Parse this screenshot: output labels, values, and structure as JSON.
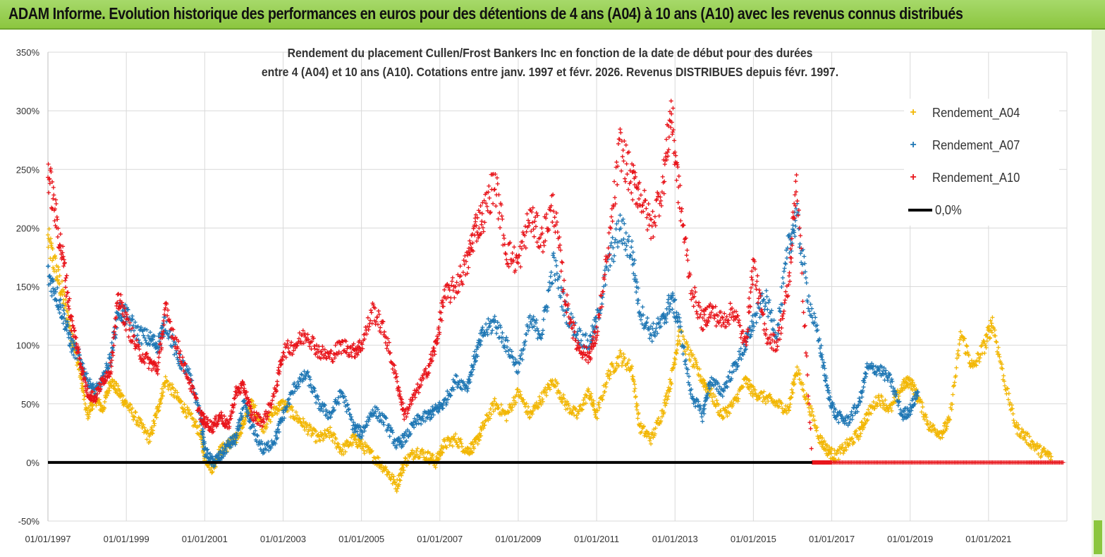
{
  "banner": {
    "title": "ADAM Informe. Evolution historique des performances en euros pour des détentions de 4 ans (A04) à 10 ans (A10) avec les revenus connus distribués"
  },
  "chart_data": {
    "type": "scatter",
    "title_line1": "Rendement du placement Cullen/Frost Bankers Inc en fonction de la date de début pour des durées",
    "title_line2": "entre 4 (A04) et 10 ans (A10).  Cotations entre janv. 1997 et févr. 2026. Revenus DISTRIBUES depuis févr. 1997.",
    "xlabel": "",
    "ylabel": "",
    "x_range": [
      1997.0,
      2023.0
    ],
    "ylim": [
      -50,
      350
    ],
    "y_ticks": [
      "-50%",
      "0%",
      "50%",
      "100%",
      "150%",
      "200%",
      "250%",
      "300%",
      "350%"
    ],
    "x_tick_labels": [
      "01/01/1997",
      "01/01/1999",
      "01/01/2001",
      "01/01/2003",
      "01/01/2005",
      "01/01/2007",
      "01/01/2009",
      "01/01/2011",
      "01/01/2013",
      "01/01/2015",
      "01/01/2017",
      "01/01/2019",
      "01/01/2021"
    ],
    "legend_position": "top-right",
    "series": [
      {
        "name": "Rendement_A04",
        "color": "#f2b705",
        "marker": "plus",
        "points": [
          [
            1997.0,
            190
          ],
          [
            1997.2,
            165
          ],
          [
            1997.4,
            140
          ],
          [
            1997.6,
            110
          ],
          [
            1997.8,
            80
          ],
          [
            1998.0,
            40
          ],
          [
            1998.2,
            55
          ],
          [
            1998.4,
            45
          ],
          [
            1998.6,
            70
          ],
          [
            1998.8,
            60
          ],
          [
            1999.0,
            50
          ],
          [
            1999.3,
            35
          ],
          [
            1999.6,
            20
          ],
          [
            1999.8,
            45
          ],
          [
            2000.0,
            70
          ],
          [
            2000.3,
            55
          ],
          [
            2000.6,
            40
          ],
          [
            2000.9,
            25
          ],
          [
            2001.0,
            5
          ],
          [
            2001.2,
            -5
          ],
          [
            2001.4,
            10
          ],
          [
            2001.6,
            15
          ],
          [
            2001.8,
            20
          ],
          [
            2002.0,
            35
          ],
          [
            2002.2,
            50
          ],
          [
            2002.5,
            30
          ],
          [
            2002.8,
            45
          ],
          [
            2003.0,
            50
          ],
          [
            2003.3,
            40
          ],
          [
            2003.6,
            30
          ],
          [
            2003.9,
            20
          ],
          [
            2004.2,
            25
          ],
          [
            2004.5,
            10
          ],
          [
            2004.8,
            20
          ],
          [
            2005.0,
            15
          ],
          [
            2005.3,
            5
          ],
          [
            2005.6,
            -5
          ],
          [
            2005.9,
            -20
          ],
          [
            2006.1,
            0
          ],
          [
            2006.4,
            10
          ],
          [
            2006.7,
            5
          ],
          [
            2006.9,
            0
          ],
          [
            2007.1,
            15
          ],
          [
            2007.4,
            20
          ],
          [
            2007.7,
            10
          ],
          [
            2007.9,
            15
          ],
          [
            2008.1,
            30
          ],
          [
            2008.4,
            50
          ],
          [
            2008.7,
            40
          ],
          [
            2009.0,
            60
          ],
          [
            2009.3,
            40
          ],
          [
            2009.6,
            55
          ],
          [
            2009.9,
            70
          ],
          [
            2010.2,
            50
          ],
          [
            2010.5,
            40
          ],
          [
            2010.8,
            60
          ],
          [
            2011.0,
            40
          ],
          [
            2011.3,
            75
          ],
          [
            2011.6,
            90
          ],
          [
            2011.9,
            80
          ],
          [
            2012.1,
            30
          ],
          [
            2012.4,
            20
          ],
          [
            2012.7,
            45
          ],
          [
            2012.9,
            70
          ],
          [
            2013.1,
            110
          ],
          [
            2013.4,
            90
          ],
          [
            2013.7,
            70
          ],
          [
            2013.9,
            60
          ],
          [
            2014.2,
            40
          ],
          [
            2014.5,
            50
          ],
          [
            2014.8,
            70
          ],
          [
            2015.0,
            60
          ],
          [
            2015.3,
            55
          ],
          [
            2015.6,
            50
          ],
          [
            2015.9,
            45
          ],
          [
            2016.1,
            80
          ],
          [
            2016.4,
            50
          ],
          [
            2016.7,
            20
          ],
          [
            2016.9,
            10
          ],
          [
            2017.1,
            5
          ],
          [
            2017.4,
            15
          ],
          [
            2017.7,
            25
          ],
          [
            2017.9,
            40
          ],
          [
            2018.2,
            55
          ],
          [
            2018.5,
            45
          ],
          [
            2018.8,
            65
          ],
          [
            2019.0,
            70
          ],
          [
            2019.2,
            55
          ],
          [
            2019.5,
            30
          ],
          [
            2019.8,
            25
          ],
          [
            2020.0,
            35
          ],
          [
            2020.3,
            110
          ],
          [
            2020.6,
            80
          ],
          [
            2020.9,
            100
          ],
          [
            2021.1,
            120
          ],
          [
            2021.4,
            70
          ],
          [
            2021.7,
            30
          ],
          [
            2022.0,
            20
          ],
          [
            2022.3,
            10
          ],
          [
            2022.6,
            5
          ]
        ]
      },
      {
        "name": "Rendement_A07",
        "color": "#1f77b4",
        "marker": "plus",
        "points": [
          [
            1997.0,
            160
          ],
          [
            1997.2,
            145
          ],
          [
            1997.4,
            125
          ],
          [
            1997.6,
            100
          ],
          [
            1997.8,
            90
          ],
          [
            1998.0,
            70
          ],
          [
            1998.2,
            60
          ],
          [
            1998.4,
            70
          ],
          [
            1998.6,
            90
          ],
          [
            1998.8,
            130
          ],
          [
            1999.0,
            125
          ],
          [
            1999.3,
            110
          ],
          [
            1999.6,
            105
          ],
          [
            1999.8,
            100
          ],
          [
            2000.0,
            120
          ],
          [
            2000.3,
            90
          ],
          [
            2000.6,
            75
          ],
          [
            2000.9,
            40
          ],
          [
            2001.0,
            10
          ],
          [
            2001.2,
            0
          ],
          [
            2001.4,
            5
          ],
          [
            2001.6,
            15
          ],
          [
            2001.8,
            20
          ],
          [
            2002.0,
            50
          ],
          [
            2002.2,
            30
          ],
          [
            2002.5,
            10
          ],
          [
            2002.8,
            20
          ],
          [
            2003.0,
            40
          ],
          [
            2003.3,
            65
          ],
          [
            2003.6,
            75
          ],
          [
            2003.9,
            50
          ],
          [
            2004.2,
            40
          ],
          [
            2004.5,
            60
          ],
          [
            2004.8,
            30
          ],
          [
            2005.0,
            25
          ],
          [
            2005.3,
            45
          ],
          [
            2005.6,
            35
          ],
          [
            2005.9,
            15
          ],
          [
            2006.1,
            20
          ],
          [
            2006.4,
            35
          ],
          [
            2006.7,
            40
          ],
          [
            2006.9,
            45
          ],
          [
            2007.1,
            50
          ],
          [
            2007.4,
            70
          ],
          [
            2007.7,
            65
          ],
          [
            2007.9,
            90
          ],
          [
            2008.1,
            110
          ],
          [
            2008.4,
            120
          ],
          [
            2008.7,
            100
          ],
          [
            2009.0,
            80
          ],
          [
            2009.3,
            120
          ],
          [
            2009.6,
            110
          ],
          [
            2009.9,
            170
          ],
          [
            2010.2,
            130
          ],
          [
            2010.5,
            110
          ],
          [
            2010.8,
            100
          ],
          [
            2011.0,
            120
          ],
          [
            2011.3,
            170
          ],
          [
            2011.6,
            200
          ],
          [
            2011.9,
            180
          ],
          [
            2012.1,
            130
          ],
          [
            2012.4,
            110
          ],
          [
            2012.7,
            120
          ],
          [
            2012.9,
            140
          ],
          [
            2013.1,
            120
          ],
          [
            2013.4,
            60
          ],
          [
            2013.7,
            40
          ],
          [
            2013.9,
            70
          ],
          [
            2014.2,
            60
          ],
          [
            2014.5,
            80
          ],
          [
            2014.8,
            100
          ],
          [
            2015.0,
            120
          ],
          [
            2015.3,
            140
          ],
          [
            2015.6,
            110
          ],
          [
            2015.9,
            185
          ],
          [
            2016.1,
            210
          ],
          [
            2016.4,
            140
          ],
          [
            2016.7,
            100
          ],
          [
            2016.9,
            60
          ],
          [
            2017.1,
            40
          ],
          [
            2017.4,
            35
          ],
          [
            2017.7,
            50
          ],
          [
            2017.9,
            80
          ],
          [
            2018.2,
            80
          ],
          [
            2018.5,
            70
          ],
          [
            2018.8,
            40
          ],
          [
            2019.0,
            45
          ],
          [
            2019.2,
            60
          ]
        ]
      },
      {
        "name": "Rendement_A10",
        "color": "#e8151b",
        "marker": "plus",
        "points": [
          [
            1997.0,
            250
          ],
          [
            1997.2,
            210
          ],
          [
            1997.4,
            170
          ],
          [
            1997.6,
            120
          ],
          [
            1997.8,
            90
          ],
          [
            1998.0,
            60
          ],
          [
            1998.2,
            55
          ],
          [
            1998.4,
            70
          ],
          [
            1998.6,
            80
          ],
          [
            1998.8,
            140
          ],
          [
            1999.0,
            120
          ],
          [
            1999.3,
            95
          ],
          [
            1999.6,
            85
          ],
          [
            1999.8,
            80
          ],
          [
            2000.0,
            130
          ],
          [
            2000.3,
            100
          ],
          [
            2000.6,
            70
          ],
          [
            2000.9,
            40
          ],
          [
            2001.0,
            35
          ],
          [
            2001.2,
            30
          ],
          [
            2001.4,
            40
          ],
          [
            2001.6,
            30
          ],
          [
            2001.8,
            60
          ],
          [
            2002.0,
            65
          ],
          [
            2002.2,
            40
          ],
          [
            2002.5,
            35
          ],
          [
            2002.8,
            60
          ],
          [
            2003.0,
            95
          ],
          [
            2003.3,
            100
          ],
          [
            2003.6,
            110
          ],
          [
            2003.9,
            95
          ],
          [
            2004.2,
            90
          ],
          [
            2004.5,
            100
          ],
          [
            2004.8,
            95
          ],
          [
            2005.0,
            100
          ],
          [
            2005.3,
            130
          ],
          [
            2005.6,
            110
          ],
          [
            2005.9,
            70
          ],
          [
            2006.1,
            40
          ],
          [
            2006.4,
            60
          ],
          [
            2006.7,
            80
          ],
          [
            2006.9,
            100
          ],
          [
            2007.1,
            140
          ],
          [
            2007.4,
            150
          ],
          [
            2007.7,
            170
          ],
          [
            2007.9,
            200
          ],
          [
            2008.1,
            210
          ],
          [
            2008.4,
            240
          ],
          [
            2008.7,
            180
          ],
          [
            2009.0,
            170
          ],
          [
            2009.3,
            210
          ],
          [
            2009.6,
            190
          ],
          [
            2009.9,
            220
          ],
          [
            2010.2,
            140
          ],
          [
            2010.5,
            100
          ],
          [
            2010.8,
            90
          ],
          [
            2011.0,
            110
          ],
          [
            2011.3,
            180
          ],
          [
            2011.6,
            270
          ],
          [
            2011.9,
            240
          ],
          [
            2012.1,
            230
          ],
          [
            2012.4,
            200
          ],
          [
            2012.7,
            240
          ],
          [
            2012.9,
            300
          ],
          [
            2013.1,
            230
          ],
          [
            2013.4,
            150
          ],
          [
            2013.7,
            120
          ],
          [
            2013.9,
            130
          ],
          [
            2014.2,
            120
          ],
          [
            2014.5,
            130
          ],
          [
            2014.8,
            100
          ],
          [
            2015.0,
            170
          ],
          [
            2015.3,
            110
          ],
          [
            2015.6,
            100
          ],
          [
            2015.9,
            150
          ],
          [
            2016.1,
            245
          ],
          [
            2016.5,
            0
          ],
          [
            2017.0,
            0
          ],
          [
            2018.0,
            0
          ],
          [
            2019.0,
            0
          ],
          [
            2020.0,
            0
          ],
          [
            2021.0,
            0
          ],
          [
            2022.0,
            0
          ],
          [
            2022.9,
            0
          ]
        ]
      },
      {
        "name": "0,0%",
        "color": "#000000",
        "marker": "line",
        "points": [
          [
            1997.0,
            0
          ],
          [
            2016.5,
            0
          ]
        ]
      }
    ]
  }
}
